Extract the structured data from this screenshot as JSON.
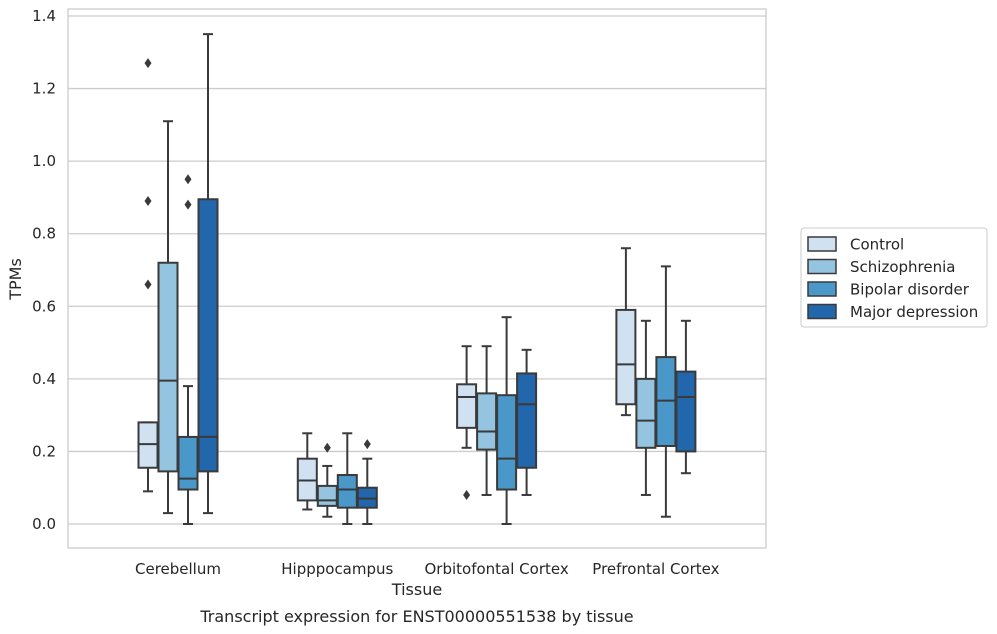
{
  "chart_data": {
    "type": "box",
    "caption": "Transcript expression for ENST00000551538 by tissue",
    "xlabel": "Tissue",
    "ylabel": "TPMs",
    "ylim": [
      -0.065,
      1.42
    ],
    "yticks": [
      0.0,
      0.2,
      0.4,
      0.6,
      0.8,
      1.0,
      1.2,
      1.4
    ],
    "ytick_labels": [
      "0.0",
      "0.2",
      "0.4",
      "0.6",
      "0.8",
      "1.0",
      "1.2",
      "1.4"
    ],
    "grid": "horizontal",
    "legend_position": "right",
    "categories": [
      "Cerebellum",
      "Hipppocampus",
      "Orbitofontal Cortex",
      "Prefrontal Cortex"
    ],
    "series": [
      {
        "name": "Control",
        "color": "#d0e1f2",
        "boxes": [
          {
            "whisker_low": 0.09,
            "q1": 0.155,
            "median": 0.22,
            "q3": 0.28,
            "whisker_high": 0.28,
            "outliers": [
              0.66,
              0.89,
              1.27
            ]
          },
          {
            "whisker_low": 0.04,
            "q1": 0.065,
            "median": 0.12,
            "q3": 0.18,
            "whisker_high": 0.25,
            "outliers": []
          },
          {
            "whisker_low": 0.21,
            "q1": 0.265,
            "median": 0.35,
            "q3": 0.385,
            "whisker_high": 0.49,
            "outliers": [
              0.08
            ]
          },
          {
            "whisker_low": 0.3,
            "q1": 0.33,
            "median": 0.44,
            "q3": 0.59,
            "whisker_high": 0.76,
            "outliers": []
          }
        ]
      },
      {
        "name": "Schizophrenia",
        "color": "#94c4df",
        "boxes": [
          {
            "whisker_low": 0.03,
            "q1": 0.145,
            "median": 0.395,
            "q3": 0.72,
            "whisker_high": 1.11,
            "outliers": []
          },
          {
            "whisker_low": 0.02,
            "q1": 0.05,
            "median": 0.065,
            "q3": 0.105,
            "whisker_high": 0.16,
            "outliers": [
              0.21
            ]
          },
          {
            "whisker_low": 0.08,
            "q1": 0.205,
            "median": 0.255,
            "q3": 0.36,
            "whisker_high": 0.49,
            "outliers": []
          },
          {
            "whisker_low": 0.08,
            "q1": 0.21,
            "median": 0.285,
            "q3": 0.4,
            "whisker_high": 0.56,
            "outliers": []
          }
        ]
      },
      {
        "name": "Bipolar disorder",
        "color": "#4a98c9",
        "boxes": [
          {
            "whisker_low": 0.0,
            "q1": 0.095,
            "median": 0.125,
            "q3": 0.24,
            "whisker_high": 0.38,
            "outliers": [
              0.88,
              0.95
            ]
          },
          {
            "whisker_low": 0.0,
            "q1": 0.045,
            "median": 0.095,
            "q3": 0.135,
            "whisker_high": 0.25,
            "outliers": []
          },
          {
            "whisker_low": 0.0,
            "q1": 0.095,
            "median": 0.18,
            "q3": 0.355,
            "whisker_high": 0.57,
            "outliers": []
          },
          {
            "whisker_low": 0.02,
            "q1": 0.215,
            "median": 0.34,
            "q3": 0.46,
            "whisker_high": 0.71,
            "outliers": []
          }
        ]
      },
      {
        "name": "Major depression",
        "color": "#2266ac",
        "boxes": [
          {
            "whisker_low": 0.03,
            "q1": 0.145,
            "median": 0.24,
            "q3": 0.895,
            "whisker_high": 1.35,
            "outliers": []
          },
          {
            "whisker_low": 0.0,
            "q1": 0.045,
            "median": 0.07,
            "q3": 0.1,
            "whisker_high": 0.18,
            "outliers": [
              0.22
            ]
          },
          {
            "whisker_low": 0.08,
            "q1": 0.155,
            "median": 0.33,
            "q3": 0.415,
            "whisker_high": 0.48,
            "outliers": []
          },
          {
            "whisker_low": 0.14,
            "q1": 0.2,
            "median": 0.35,
            "q3": 0.42,
            "whisker_high": 0.56,
            "outliers": []
          }
        ]
      }
    ]
  }
}
